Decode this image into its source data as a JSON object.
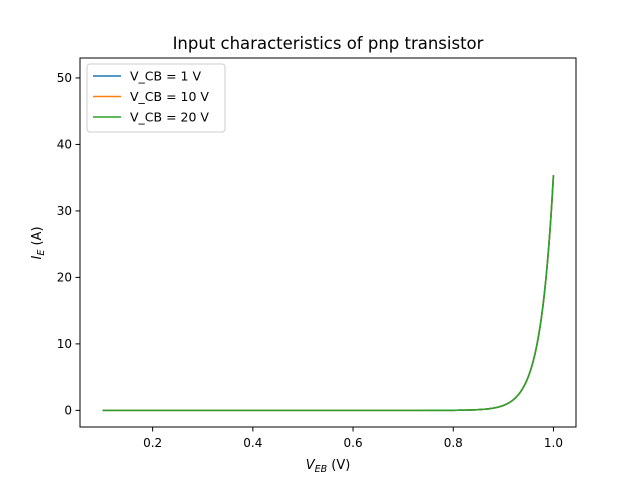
{
  "chart_data": {
    "type": "line",
    "title": "Input characteristics of pnp transistor",
    "xlabel_main": "V",
    "xlabel_sub": "EB",
    "xlabel_unit": " (V)",
    "ylabel_main": "I",
    "ylabel_sub": "E",
    "ylabel_unit": " (A)",
    "xlim": [
      0.055,
      1.045
    ],
    "ylim": [
      -2.5,
      53.0
    ],
    "xticks": [
      0.2,
      0.4,
      0.6,
      0.8,
      1.0
    ],
    "xtick_labels": [
      "0.2",
      "0.4",
      "0.6",
      "0.8",
      "1.0"
    ],
    "yticks": [
      0,
      10,
      20,
      30,
      40,
      50
    ],
    "ytick_labels": [
      "0",
      "10",
      "20",
      "30",
      "40",
      "50"
    ],
    "grid": false,
    "legend_position": "top-left",
    "model": {
      "saturation_current": 5.6e-16,
      "thermal_voltage": 0.02585
    },
    "x": [
      0.1,
      0.2,
      0.3,
      0.4,
      0.5,
      0.6,
      0.7,
      0.75,
      0.8,
      0.82,
      0.84,
      0.86,
      0.88,
      0.9,
      0.92,
      0.94,
      0.96,
      0.98,
      1.0
    ],
    "series": [
      {
        "name": "V_CB = 1 V",
        "color": "#1f77b4"
      },
      {
        "name": "V_CB = 10 V",
        "color": "#ff7f0e"
      },
      {
        "name": "V_CB = 20 V",
        "color": "#2ca02c"
      }
    ]
  }
}
